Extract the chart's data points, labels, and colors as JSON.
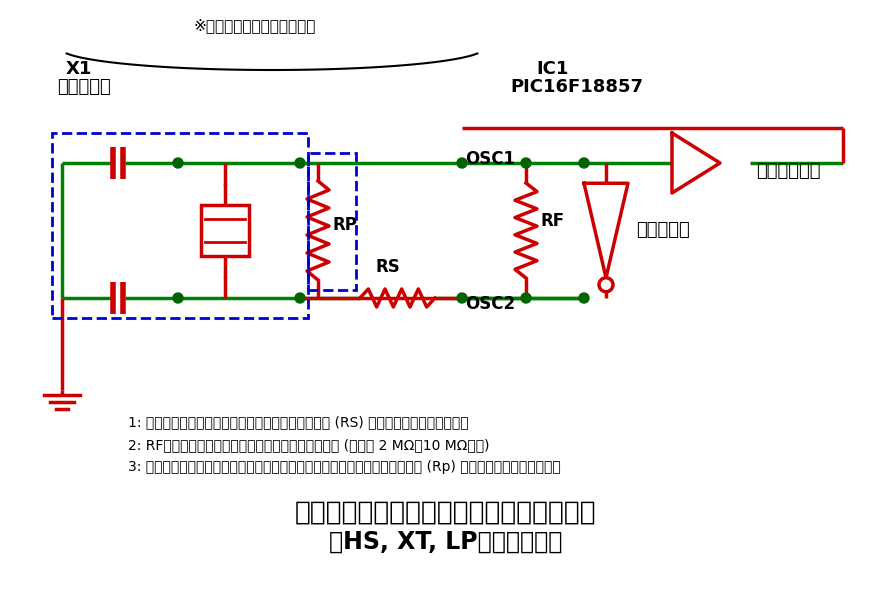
{
  "bg_color": "#ffffff",
  "wire_color_green": "#008000",
  "wire_color_red": "#cc0000",
  "wire_color_black": "#000000",
  "dot_color": "#006400",
  "component_color": "#cc0000",
  "dashed_box_color": "#0000cc",
  "title1": "セラミック振動子を使用したクロック回路",
  "title2": "（HS, XT, LPモード動作）",
  "note": "※出来るだけ短い配線にする",
  "label_x1": "X1",
  "label_ceraloc": "セラロック",
  "label_ic1": "IC1",
  "label_pic": "PIC16F18857",
  "label_osc1": "OSC1",
  "label_osc2": "OSC2",
  "label_rp": "RP",
  "label_rs": "RS",
  "label_rf": "RF",
  "label_clock": "クロック信号",
  "label_inv": "反転増幅器",
  "note1": "1: 駆動レベルが低いセラミック振動子には直列抵抗 (RS) が必要になる場合がある。",
  "note2": "2: RFの値は選択したクロックモードによって異なる (通常は 2 MΩ～10 MΩの間)",
  "note3": "3: セラミック振動子を適切に動作させる為に追加の並列フィードバック抵抗 (Rp) が必要になる場合がある。"
}
